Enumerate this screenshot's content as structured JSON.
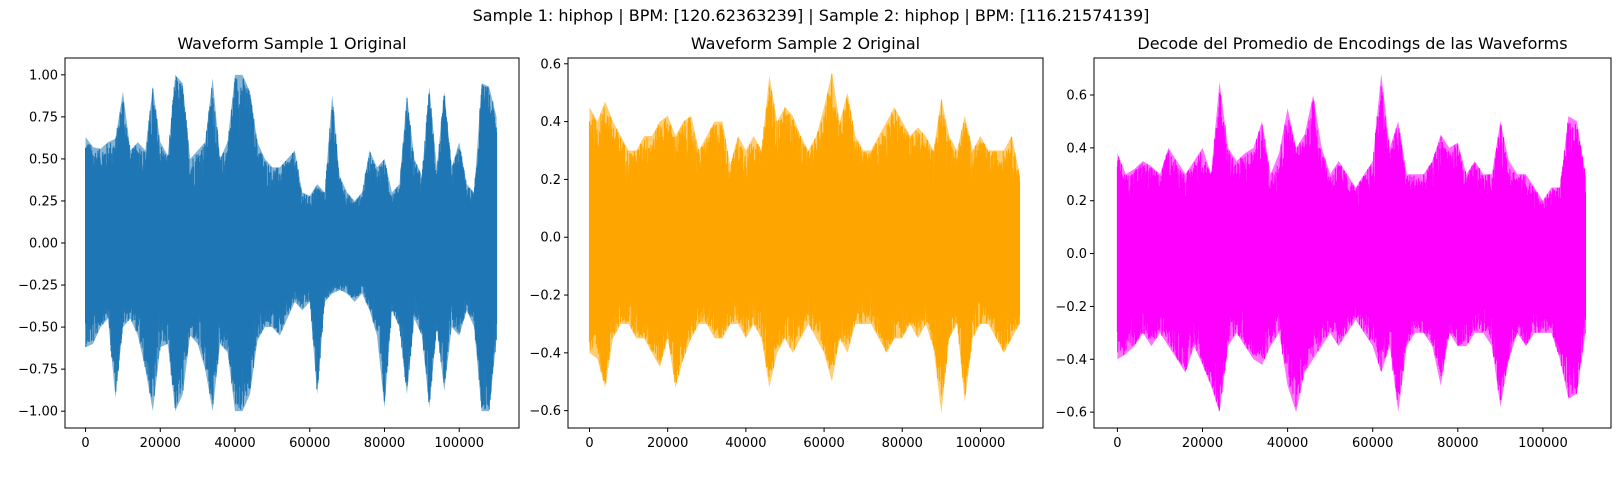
{
  "suptitle": "Sample 1: hiphop | BPM: [120.62363239] | Sample 2: hiphop | BPM: [116.21574139]",
  "chart_data": [
    {
      "type": "line",
      "title": "Waveform Sample 1 Original",
      "color": "#1f77b4",
      "xlabel": "",
      "ylabel": "",
      "xlim": [
        -5500,
        116000
      ],
      "ylim": [
        -1.1,
        1.1
      ],
      "xticks": [
        0,
        20000,
        40000,
        60000,
        80000,
        100000
      ],
      "xtick_labels": [
        "0",
        "20000",
        "40000",
        "60000",
        "80000",
        "100000"
      ],
      "yticks": [
        -1.0,
        -0.75,
        -0.5,
        -0.25,
        0.0,
        0.25,
        0.5,
        0.75,
        1.0
      ],
      "ytick_labels": [
        "−1.00",
        "−0.75",
        "−0.50",
        "−0.25",
        "0.00",
        "0.25",
        "0.50",
        "0.75",
        "1.00"
      ],
      "grid": false,
      "series": [
        {
          "x": [
            0,
            2000,
            4000,
            6000,
            8000,
            10000,
            12000,
            14000,
            16000,
            18000,
            20000,
            22000,
            24000,
            26000,
            28000,
            30000,
            32000,
            34000,
            36000,
            38000,
            40000,
            42000,
            44000,
            46000,
            48000,
            50000,
            52000,
            54000,
            56000,
            58000,
            60000,
            62000,
            64000,
            66000,
            68000,
            70000,
            72000,
            74000,
            76000,
            78000,
            80000,
            82000,
            84000,
            86000,
            88000,
            90000,
            92000,
            94000,
            96000,
            98000,
            100000,
            102000,
            104000,
            106000,
            108000,
            110000
          ],
          "upper": [
            0.63,
            0.57,
            0.56,
            0.6,
            0.62,
            0.9,
            0.55,
            0.6,
            0.55,
            0.93,
            0.6,
            0.52,
            1.0,
            0.95,
            0.5,
            0.55,
            0.6,
            0.98,
            0.5,
            0.6,
            1.0,
            1.0,
            0.9,
            0.6,
            0.5,
            0.45,
            0.45,
            0.5,
            0.55,
            0.3,
            0.28,
            0.35,
            0.3,
            0.88,
            0.4,
            0.3,
            0.25,
            0.3,
            0.55,
            0.45,
            0.5,
            0.3,
            0.35,
            0.88,
            0.5,
            0.4,
            0.93,
            0.45,
            0.9,
            0.45,
            0.6,
            0.35,
            0.3,
            0.95,
            0.93,
            0.75
          ],
          "lower": [
            -0.62,
            -0.6,
            -0.5,
            -0.45,
            -0.92,
            -0.5,
            -0.45,
            -0.55,
            -0.75,
            -1.0,
            -0.62,
            -0.6,
            -1.0,
            -0.9,
            -0.55,
            -0.6,
            -0.75,
            -1.0,
            -0.6,
            -0.65,
            -1.0,
            -1.0,
            -0.9,
            -0.58,
            -0.5,
            -0.5,
            -0.55,
            -0.45,
            -0.35,
            -0.4,
            -0.35,
            -0.9,
            -0.35,
            -0.3,
            -0.28,
            -0.3,
            -0.35,
            -0.3,
            -0.4,
            -0.55,
            -0.98,
            -0.4,
            -0.5,
            -0.9,
            -0.45,
            -0.55,
            -0.98,
            -0.5,
            -0.88,
            -0.5,
            -0.55,
            -0.4,
            -0.5,
            -1.0,
            -1.0,
            -0.57
          ]
        }
      ]
    },
    {
      "type": "line",
      "title": "Waveform Sample 2 Original",
      "color": "#ffa500",
      "xlabel": "",
      "ylabel": "",
      "xlim": [
        -5500,
        116000
      ],
      "ylim": [
        -0.66,
        0.62
      ],
      "xticks": [
        0,
        20000,
        40000,
        60000,
        80000,
        100000
      ],
      "xtick_labels": [
        "0",
        "20000",
        "40000",
        "60000",
        "80000",
        "100000"
      ],
      "yticks": [
        -0.6,
        -0.4,
        -0.2,
        0.0,
        0.2,
        0.4,
        0.6
      ],
      "ytick_labels": [
        "−0.6",
        "−0.4",
        "−0.2",
        "0.0",
        "0.2",
        "0.4",
        "0.6"
      ],
      "grid": false,
      "series": [
        {
          "x": [
            0,
            2000,
            4000,
            6000,
            8000,
            10000,
            12000,
            14000,
            16000,
            18000,
            20000,
            22000,
            24000,
            26000,
            28000,
            30000,
            32000,
            34000,
            36000,
            38000,
            40000,
            42000,
            44000,
            46000,
            48000,
            50000,
            52000,
            54000,
            56000,
            58000,
            60000,
            62000,
            64000,
            66000,
            68000,
            70000,
            72000,
            74000,
            76000,
            78000,
            80000,
            82000,
            84000,
            86000,
            88000,
            90000,
            92000,
            94000,
            96000,
            98000,
            100000,
            102000,
            104000,
            106000,
            108000,
            110000
          ],
          "upper": [
            0.45,
            0.4,
            0.47,
            0.4,
            0.35,
            0.3,
            0.3,
            0.35,
            0.35,
            0.4,
            0.42,
            0.35,
            0.4,
            0.42,
            0.3,
            0.35,
            0.4,
            0.4,
            0.25,
            0.35,
            0.3,
            0.35,
            0.3,
            0.56,
            0.4,
            0.45,
            0.42,
            0.35,
            0.3,
            0.35,
            0.45,
            0.57,
            0.4,
            0.5,
            0.35,
            0.3,
            0.3,
            0.35,
            0.4,
            0.45,
            0.4,
            0.35,
            0.38,
            0.35,
            0.3,
            0.48,
            0.35,
            0.3,
            0.42,
            0.3,
            0.35,
            0.3,
            0.3,
            0.3,
            0.35,
            0.22
          ],
          "lower": [
            -0.4,
            -0.42,
            -0.52,
            -0.35,
            -0.3,
            -0.3,
            -0.35,
            -0.35,
            -0.4,
            -0.45,
            -0.35,
            -0.52,
            -0.42,
            -0.35,
            -0.3,
            -0.3,
            -0.35,
            -0.35,
            -0.3,
            -0.3,
            -0.35,
            -0.3,
            -0.35,
            -0.52,
            -0.4,
            -0.35,
            -0.4,
            -0.35,
            -0.3,
            -0.35,
            -0.4,
            -0.5,
            -0.35,
            -0.4,
            -0.3,
            -0.3,
            -0.3,
            -0.35,
            -0.4,
            -0.35,
            -0.35,
            -0.3,
            -0.35,
            -0.3,
            -0.38,
            -0.61,
            -0.35,
            -0.3,
            -0.57,
            -0.35,
            -0.3,
            -0.3,
            -0.35,
            -0.4,
            -0.35,
            -0.3
          ]
        }
      ]
    },
    {
      "type": "line",
      "title": "Decode del Promedio de Encodings de las Waveforms",
      "color": "#ff00ff",
      "xlabel": "",
      "ylabel": "",
      "xlim": [
        -5500,
        116000
      ],
      "ylim": [
        -0.66,
        0.74
      ],
      "xticks": [
        0,
        20000,
        40000,
        60000,
        80000,
        100000
      ],
      "xtick_labels": [
        "0",
        "20000",
        "40000",
        "60000",
        "80000",
        "100000"
      ],
      "yticks": [
        -0.6,
        -0.4,
        -0.2,
        0.0,
        0.2,
        0.4,
        0.6
      ],
      "ytick_labels": [
        "−0.6",
        "−0.4",
        "−0.2",
        "0.0",
        "0.2",
        "0.4",
        "0.6"
      ],
      "grid": false,
      "series": [
        {
          "x": [
            0,
            2000,
            4000,
            6000,
            8000,
            10000,
            12000,
            14000,
            16000,
            18000,
            20000,
            22000,
            24000,
            26000,
            28000,
            30000,
            32000,
            34000,
            36000,
            38000,
            40000,
            42000,
            44000,
            46000,
            48000,
            50000,
            52000,
            54000,
            56000,
            58000,
            60000,
            62000,
            64000,
            66000,
            68000,
            70000,
            72000,
            74000,
            76000,
            78000,
            80000,
            82000,
            84000,
            86000,
            88000,
            90000,
            92000,
            94000,
            96000,
            98000,
            100000,
            102000,
            104000,
            106000,
            108000,
            110000
          ],
          "upper": [
            0.38,
            0.3,
            0.32,
            0.35,
            0.33,
            0.3,
            0.4,
            0.35,
            0.3,
            0.35,
            0.4,
            0.3,
            0.65,
            0.4,
            0.35,
            0.38,
            0.4,
            0.5,
            0.3,
            0.38,
            0.55,
            0.4,
            0.45,
            0.6,
            0.4,
            0.3,
            0.35,
            0.3,
            0.25,
            0.3,
            0.35,
            0.68,
            0.4,
            0.5,
            0.3,
            0.3,
            0.3,
            0.35,
            0.45,
            0.4,
            0.42,
            0.3,
            0.35,
            0.3,
            0.3,
            0.5,
            0.35,
            0.3,
            0.3,
            0.25,
            0.2,
            0.25,
            0.25,
            0.52,
            0.5,
            0.3
          ],
          "lower": [
            -0.4,
            -0.38,
            -0.35,
            -0.3,
            -0.35,
            -0.3,
            -0.35,
            -0.4,
            -0.45,
            -0.35,
            -0.42,
            -0.5,
            -0.6,
            -0.35,
            -0.3,
            -0.35,
            -0.4,
            -0.42,
            -0.35,
            -0.3,
            -0.5,
            -0.6,
            -0.45,
            -0.4,
            -0.35,
            -0.3,
            -0.35,
            -0.3,
            -0.25,
            -0.3,
            -0.35,
            -0.45,
            -0.35,
            -0.6,
            -0.35,
            -0.3,
            -0.3,
            -0.35,
            -0.5,
            -0.3,
            -0.35,
            -0.35,
            -0.3,
            -0.3,
            -0.35,
            -0.58,
            -0.4,
            -0.3,
            -0.35,
            -0.3,
            -0.3,
            -0.3,
            -0.4,
            -0.55,
            -0.53,
            -0.3
          ]
        }
      ]
    }
  ]
}
